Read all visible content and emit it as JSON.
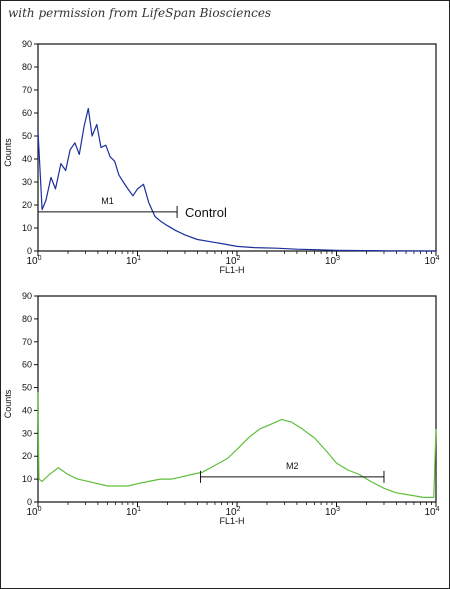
{
  "watermark": "with permission from LifeSpan Biosciences",
  "chart_data": [
    {
      "type": "line",
      "title": "",
      "xlabel": "FL1-H",
      "ylabel": "Counts",
      "xscale": "log",
      "xlim": [
        1,
        10000
      ],
      "ylim": [
        0,
        90
      ],
      "x_ticks": [
        {
          "base": "10",
          "exp": "0"
        },
        {
          "base": "10",
          "exp": "1"
        },
        {
          "base": "10",
          "exp": "2"
        },
        {
          "base": "10",
          "exp": "3"
        },
        {
          "base": "10",
          "exp": "4"
        }
      ],
      "y_ticks": [
        "0",
        "10",
        "20",
        "30",
        "40",
        "50",
        "60",
        "70",
        "80",
        "90"
      ],
      "grid": false,
      "series": [
        {
          "color": "#1c2f9c",
          "x": [
            1.0,
            1.1,
            1.2,
            1.35,
            1.5,
            1.7,
            1.9,
            2.1,
            2.35,
            2.6,
            2.9,
            3.2,
            3.5,
            3.9,
            4.3,
            4.8,
            5.3,
            5.9,
            6.5,
            7.2,
            8.0,
            9.0,
            10.0,
            11.5,
            13.0,
            15.0,
            17.0,
            20.0,
            24.0,
            30.0,
            40.0,
            55.0,
            75.0,
            100.0,
            150.0,
            250.0,
            400.0,
            700.0,
            1000.0,
            3000.0,
            10000.0
          ],
          "y": [
            52,
            18,
            22,
            32,
            27,
            38,
            35,
            44,
            47,
            42,
            54,
            62,
            50,
            55,
            45,
            46,
            41,
            39,
            33,
            30,
            27,
            24,
            27,
            29,
            21,
            15,
            13,
            11,
            9,
            7,
            5,
            4,
            3,
            2,
            1.5,
            1.2,
            0.8,
            0.5,
            0.3,
            0.1,
            0
          ]
        }
      ],
      "markers": [
        {
          "label": "M1",
          "x_start": 1.0,
          "x_end": 25.0,
          "y": 17
        }
      ],
      "annotations": [
        {
          "text": "Control",
          "x": 30.0,
          "y": 17
        }
      ]
    },
    {
      "type": "line",
      "title": "",
      "xlabel": "FL1-H",
      "ylabel": "Counts",
      "xscale": "log",
      "xlim": [
        1,
        10000
      ],
      "ylim": [
        0,
        90
      ],
      "x_ticks": [
        {
          "base": "10",
          "exp": "0"
        },
        {
          "base": "10",
          "exp": "1"
        },
        {
          "base": "10",
          "exp": "2"
        },
        {
          "base": "10",
          "exp": "3"
        },
        {
          "base": "10",
          "exp": "4"
        }
      ],
      "y_ticks": [
        "0",
        "10",
        "20",
        "30",
        "40",
        "50",
        "60",
        "70",
        "80",
        "90"
      ],
      "grid": false,
      "series": [
        {
          "color": "#5fbf3a",
          "x": [
            1.0,
            1.02,
            1.1,
            1.3,
            1.6,
            2.0,
            2.5,
            3.2,
            4.0,
            5.0,
            6.5,
            8.0,
            10.0,
            13.0,
            17.0,
            22.0,
            28.0,
            35.0,
            45.0,
            60.0,
            80.0,
            100.0,
            130.0,
            170.0,
            220.0,
            280.0,
            350.0,
            450.0,
            600.0,
            800.0,
            1000.0,
            1300.0,
            1700.0,
            2200.0,
            3000.0,
            4000.0,
            5500.0,
            7500.0,
            9500.0,
            10000.0
          ],
          "y": [
            48,
            10,
            9,
            12,
            15,
            12,
            10,
            9,
            8,
            7,
            7,
            7,
            8,
            9,
            10,
            10,
            11,
            12,
            13,
            16,
            19,
            23,
            28,
            32,
            34,
            36,
            35,
            32,
            28,
            22,
            17,
            14,
            12,
            9,
            6,
            4,
            3,
            2,
            2,
            32
          ]
        }
      ],
      "markers": [
        {
          "label": "M2",
          "x_start": 43.0,
          "x_end": 3000.0,
          "y": 11
        }
      ],
      "annotations": []
    }
  ]
}
